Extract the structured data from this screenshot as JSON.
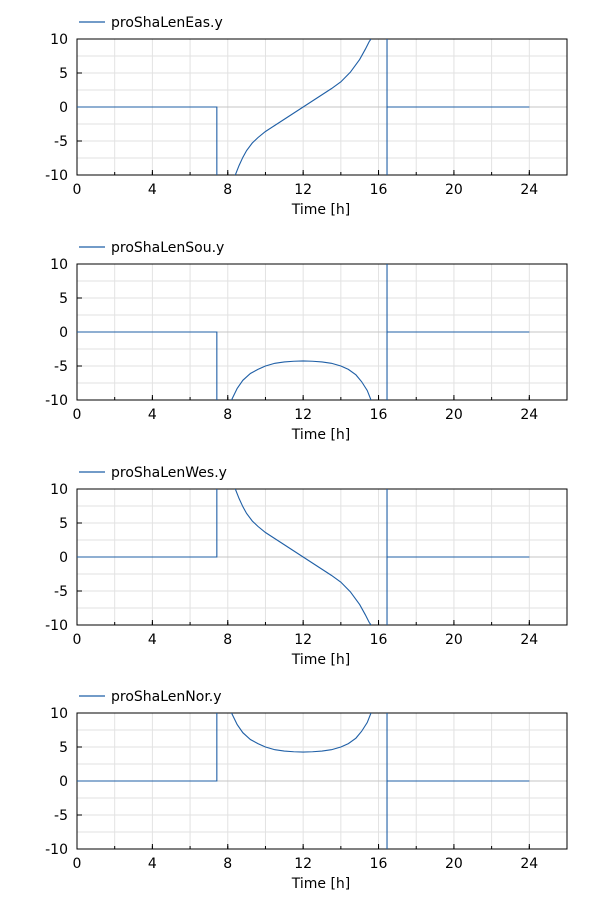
{
  "chart_data": [
    {
      "type": "line",
      "xlabel": "Time [h]",
      "ylabel": "",
      "xlim": [
        0,
        26
      ],
      "ylim": [
        -10,
        10
      ],
      "xticks": [
        0,
        4,
        8,
        12,
        16,
        20,
        24
      ],
      "yticks": [
        -10,
        -5,
        0,
        5,
        10
      ],
      "grid": true,
      "legend": "top-left",
      "series": [
        {
          "name": "proShaLenEas.y",
          "color": "#1f5fa6",
          "x": [
            0,
            7.42,
            7.42,
            7.42,
            8.4,
            8.6,
            8.8,
            9.0,
            9.3,
            9.6,
            10.0,
            10.5,
            11.0,
            11.5,
            12.0,
            12.5,
            13.0,
            13.5,
            14.0,
            14.5,
            15.0,
            15.3,
            15.5,
            15.6,
            15.6,
            16.45,
            16.45,
            16.45,
            16.45,
            24
          ],
          "y": [
            0,
            0,
            -10,
            null,
            -10,
            -8.6,
            -7.4,
            -6.4,
            -5.3,
            -4.5,
            -3.6,
            -2.7,
            -1.8,
            -0.9,
            0,
            0.9,
            1.8,
            2.7,
            3.7,
            5.1,
            7.0,
            8.5,
            9.6,
            10,
            null,
            10,
            -10,
            null,
            0,
            0
          ]
        }
      ]
    },
    {
      "type": "line",
      "xlabel": "Time [h]",
      "ylabel": "",
      "xlim": [
        0,
        26
      ],
      "ylim": [
        -10,
        10
      ],
      "xticks": [
        0,
        4,
        8,
        12,
        16,
        20,
        24
      ],
      "yticks": [
        -10,
        -5,
        0,
        5,
        10
      ],
      "grid": true,
      "legend": "top-left",
      "series": [
        {
          "name": "proShaLenSou.y",
          "color": "#1f5fa6",
          "x": [
            0,
            7.42,
            7.42,
            7.42,
            8.2,
            8.5,
            8.8,
            9.2,
            9.6,
            10.0,
            10.5,
            11.0,
            11.5,
            12.0,
            12.5,
            13.0,
            13.5,
            14.0,
            14.4,
            14.8,
            15.1,
            15.4,
            15.6,
            15.6,
            16.45,
            16.45,
            16.45,
            16.45,
            24
          ],
          "y": [
            0,
            0,
            -10,
            null,
            -10,
            -8.3,
            -7.1,
            -6.1,
            -5.5,
            -5.0,
            -4.6,
            -4.4,
            -4.3,
            -4.25,
            -4.3,
            -4.4,
            -4.6,
            -5.0,
            -5.5,
            -6.3,
            -7.3,
            -8.6,
            -10,
            null,
            -10,
            10,
            null,
            0,
            0
          ]
        }
      ]
    },
    {
      "type": "line",
      "xlabel": "Time [h]",
      "ylabel": "",
      "xlim": [
        0,
        26
      ],
      "ylim": [
        -10,
        10
      ],
      "xticks": [
        0,
        4,
        8,
        12,
        16,
        20,
        24
      ],
      "yticks": [
        -10,
        -5,
        0,
        5,
        10
      ],
      "grid": true,
      "legend": "top-left",
      "series": [
        {
          "name": "proShaLenWes.y",
          "color": "#1f5fa6",
          "x": [
            0,
            7.42,
            7.42,
            7.42,
            8.4,
            8.6,
            8.8,
            9.0,
            9.3,
            9.6,
            10.0,
            10.5,
            11.0,
            11.5,
            12.0,
            12.5,
            13.0,
            13.5,
            14.0,
            14.5,
            15.0,
            15.3,
            15.5,
            15.6,
            15.6,
            16.45,
            16.45,
            16.45,
            16.45,
            24
          ],
          "y": [
            0,
            0,
            10,
            null,
            10,
            8.6,
            7.4,
            6.4,
            5.3,
            4.5,
            3.6,
            2.7,
            1.8,
            0.9,
            0,
            -0.9,
            -1.8,
            -2.7,
            -3.7,
            -5.1,
            -7.0,
            -8.5,
            -9.6,
            -10,
            null,
            -10,
            10,
            null,
            0,
            0
          ]
        }
      ]
    },
    {
      "type": "line",
      "xlabel": "Time [h]",
      "ylabel": "",
      "xlim": [
        0,
        26
      ],
      "ylim": [
        -10,
        10
      ],
      "xticks": [
        0,
        4,
        8,
        12,
        16,
        20,
        24
      ],
      "yticks": [
        -10,
        -5,
        0,
        5,
        10
      ],
      "grid": true,
      "legend": "top-left",
      "series": [
        {
          "name": "proShaLenNor.y",
          "color": "#1f5fa6",
          "x": [
            0,
            7.42,
            7.42,
            7.42,
            8.2,
            8.5,
            8.8,
            9.2,
            9.6,
            10.0,
            10.5,
            11.0,
            11.5,
            12.0,
            12.5,
            13.0,
            13.5,
            14.0,
            14.4,
            14.8,
            15.1,
            15.4,
            15.6,
            15.6,
            16.45,
            16.45,
            16.45,
            16.45,
            24
          ],
          "y": [
            0,
            0,
            10,
            null,
            10,
            8.3,
            7.1,
            6.1,
            5.5,
            5.0,
            4.6,
            4.4,
            4.3,
            4.25,
            4.3,
            4.4,
            4.6,
            5.0,
            5.5,
            6.3,
            7.3,
            8.6,
            10,
            null,
            10,
            -10,
            null,
            0,
            0
          ]
        }
      ]
    }
  ]
}
